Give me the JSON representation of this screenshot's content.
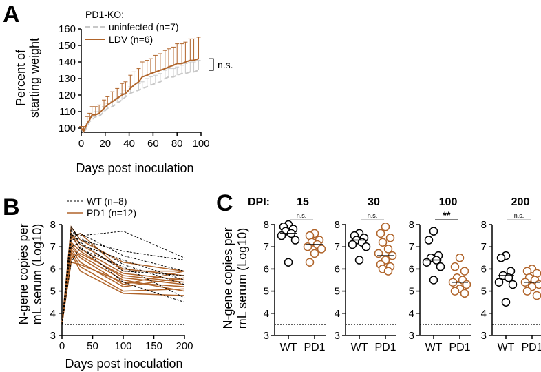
{
  "colors": {
    "ko": "#b0642a",
    "uninfected": "#c8c8c8",
    "wt": "#000000",
    "pd1": "#b0642a",
    "ns": "#9a9a9a"
  },
  "chart_data": [
    {
      "panel": "A",
      "type": "line",
      "legend_title": "PD1-KO:",
      "x": [
        0,
        2,
        5,
        7,
        9,
        12,
        15,
        19,
        22,
        26,
        30,
        34,
        37,
        41,
        44,
        48,
        51,
        55,
        58,
        62,
        66,
        70,
        73,
        77,
        80,
        84,
        87,
        91,
        94,
        98
      ],
      "series": [
        {
          "name": "uninfected (n=7)",
          "style": "dashed",
          "values": [
            100,
            97,
            101,
            104,
            105,
            107,
            107,
            110,
            112,
            113,
            115,
            117,
            119,
            121,
            122,
            123,
            124,
            125,
            126,
            127,
            128,
            130,
            131,
            131,
            132,
            133,
            133,
            134,
            134,
            135
          ],
          "error": [
            1,
            2,
            2,
            2,
            2,
            3,
            3,
            3,
            3,
            3,
            3,
            4,
            4,
            4,
            4,
            4,
            4,
            5,
            5,
            5,
            5,
            5,
            5,
            5,
            5,
            5,
            6,
            6,
            6,
            6
          ]
        },
        {
          "name": "LDV (n=6)",
          "style": "solid",
          "values": [
            100,
            98,
            103,
            105,
            108,
            108,
            109,
            112,
            114,
            116,
            118,
            120,
            121,
            124,
            126,
            128,
            131,
            132,
            133,
            134,
            135,
            136,
            137,
            138,
            139,
            139,
            140,
            141,
            141,
            142
          ],
          "error": [
            1,
            3,
            4,
            4,
            5,
            5,
            5,
            5,
            5,
            6,
            6,
            7,
            7,
            8,
            8,
            8,
            9,
            9,
            9,
            10,
            10,
            11,
            11,
            11,
            12,
            12,
            12,
            13,
            13,
            13
          ]
        }
      ],
      "ylabel": "Percent of starting weight",
      "xlabel": "Days post inoculation",
      "yticks": [
        100,
        110,
        120,
        130,
        140,
        150,
        160
      ],
      "xticks": [
        0,
        20,
        40,
        60,
        80,
        100
      ],
      "annotation": "n.s."
    },
    {
      "panel": "B",
      "type": "line",
      "legend": [
        "WT (n=8)",
        "PD1 (n=12)"
      ],
      "x": [
        0,
        15,
        30,
        100,
        200
      ],
      "series": [
        {
          "name": "WT",
          "style": "dashed",
          "lines": [
            [
              3.5,
              7.7,
              7.5,
              7.7,
              6.5
            ],
            [
              3.5,
              7.9,
              7.3,
              6.8,
              6.4
            ],
            [
              3.5,
              7.5,
              7.6,
              6.6,
              5.9
            ],
            [
              3.5,
              7.8,
              7.1,
              6.4,
              5.5
            ],
            [
              3.5,
              7.3,
              7.4,
              6.2,
              5.3
            ],
            [
              3.5,
              7.6,
              6.9,
              6.1,
              4.7
            ],
            [
              3.5,
              7.0,
              7.2,
              5.9,
              5.7
            ],
            [
              3.5,
              6.3,
              7.0,
              5.4,
              4.5
            ]
          ]
        },
        {
          "name": "PD1",
          "style": "solid",
          "lines": [
            [
              3.5,
              7.9,
              7.3,
              6.3,
              5.9
            ],
            [
              3.5,
              7.6,
              7.1,
              6.0,
              5.7
            ],
            [
              3.5,
              7.5,
              6.9,
              5.8,
              5.5
            ],
            [
              3.5,
              7.4,
              7.6,
              5.9,
              5.9
            ],
            [
              3.5,
              7.2,
              6.8,
              5.6,
              5.3
            ],
            [
              3.5,
              7.1,
              6.6,
              5.5,
              5.0
            ],
            [
              3.5,
              7.0,
              6.5,
              5.3,
              5.9
            ],
            [
              3.5,
              6.9,
              6.3,
              5.2,
              5.6
            ],
            [
              3.5,
              6.8,
              6.1,
              5.0,
              5.1
            ],
            [
              3.5,
              6.7,
              5.9,
              4.9,
              4.8
            ],
            [
              3.5,
              6.5,
              6.7,
              5.7,
              5.4
            ],
            [
              3.5,
              6.3,
              6.2,
              5.4,
              5.2
            ]
          ]
        }
      ],
      "ylabel": "N-gene copies per mL serum (Log10)",
      "xlabel": "Days post inoculation",
      "yticks": [
        3,
        4,
        5,
        6,
        7,
        8
      ],
      "xticks": [
        0,
        50,
        100,
        150,
        200
      ],
      "lod": 3.5
    },
    {
      "panel": "C",
      "type": "scatter",
      "row_label": "DPI:",
      "ylabel": "N-gene copies per mL serum (Log10)",
      "yticks": [
        3,
        4,
        5,
        6,
        7,
        8
      ],
      "lod": 3.5,
      "subpanels": [
        {
          "dpi": "15",
          "sig": "n.s.",
          "categories": [
            "WT",
            "PD1"
          ],
          "WT": [
            8.0,
            7.9,
            7.8,
            7.7,
            7.6,
            7.5,
            7.3,
            6.3
          ],
          "PD1": [
            7.6,
            7.5,
            7.3,
            7.2,
            7.1,
            7.0,
            6.9,
            6.7,
            6.3
          ],
          "medians": [
            7.6,
            7.1
          ]
        },
        {
          "dpi": "30",
          "sig": "n.s.",
          "categories": [
            "WT",
            "PD1"
          ],
          "WT": [
            7.6,
            7.5,
            7.4,
            7.3,
            7.2,
            7.1,
            7.0,
            6.4
          ],
          "PD1": [
            7.9,
            7.6,
            7.4,
            7.2,
            6.9,
            6.7,
            6.6,
            6.4,
            6.2,
            6.1,
            6.0,
            5.9
          ],
          "medians": [
            7.3,
            6.6
          ]
        },
        {
          "dpi": "100",
          "sig": "**",
          "categories": [
            "WT",
            "PD1"
          ],
          "WT": [
            7.7,
            7.3,
            6.6,
            6.5,
            6.4,
            6.3,
            6.1,
            5.5
          ],
          "PD1": [
            6.5,
            6.1,
            5.9,
            5.6,
            5.5,
            5.4,
            5.3,
            5.1,
            5.0,
            4.9
          ],
          "medians": [
            6.4,
            5.4
          ]
        },
        {
          "dpi": "200",
          "sig": "n.s.",
          "categories": [
            "WT",
            "PD1"
          ],
          "WT": [
            6.6,
            6.5,
            5.9,
            5.7,
            5.6,
            5.4,
            5.3,
            4.5
          ],
          "PD1": [
            6.0,
            5.9,
            5.8,
            5.6,
            5.5,
            5.4,
            5.3,
            5.2,
            5.0,
            4.8
          ],
          "medians": [
            5.7,
            5.4
          ]
        }
      ]
    }
  ],
  "labels": {
    "panel_a": "A",
    "panel_b": "B",
    "panel_c": "C",
    "a_legend_title": "PD1-KO:",
    "a_legend_uninfected": "uninfected (n=7)",
    "a_legend_ldv": "LDV (n=6)",
    "a_ylabel_1": "Percent of",
    "a_ylabel_2": "starting weight",
    "a_xlabel": "Days post inoculation",
    "a_ns": "n.s.",
    "b_legend_wt": "WT (n=8)",
    "b_legend_pd1": "PD1 (n=12)",
    "b_ylabel_1": "N-gene copies per",
    "b_ylabel_2": "mL serum (Log10)",
    "b_xlabel": "Days post inoculation",
    "c_dpi": "DPI:",
    "c_ylabel_1": "N-gene copies per",
    "c_ylabel_2": "mL serum (Log10)"
  }
}
